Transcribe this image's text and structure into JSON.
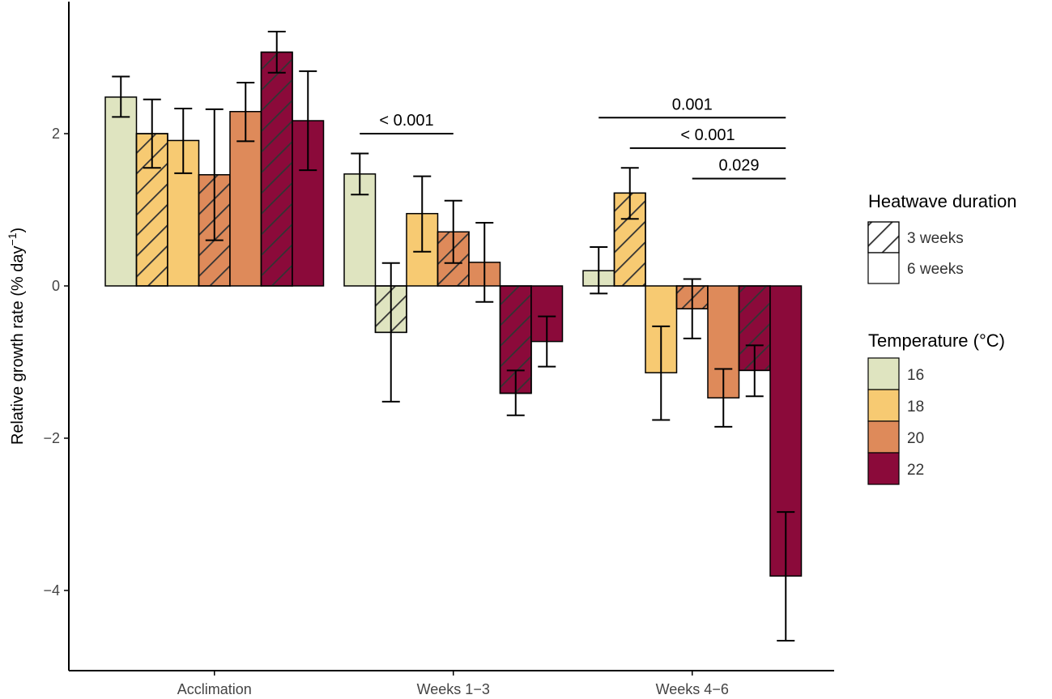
{
  "chart_data": {
    "type": "bar",
    "title": "",
    "xlabel": "",
    "ylabel": "Relative growth rate (% day",
    "ylabel_superscript": "−1",
    "ylabel_close": ")",
    "ylim": [
      -5,
      3.6
    ],
    "yticks": [
      -4,
      -2,
      0,
      2
    ],
    "ytick_labels": [
      "−4",
      "−2",
      "0",
      "2"
    ],
    "categories": [
      "Acclimation",
      "Weeks 1−3",
      "Weeks 4−6"
    ],
    "colors": {
      "16": "#dfe4c0",
      "18": "#f7ca72",
      "20": "#de8a5a",
      "22": "#8b0a3a"
    },
    "bars": [
      [
        {
          "temp": "16",
          "hatched": false,
          "value": 2.48,
          "err_low": 2.22,
          "err_high": 2.75
        },
        {
          "temp": "18",
          "hatched": true,
          "value": 2.0,
          "err_low": 1.55,
          "err_high": 2.45
        },
        {
          "temp": "18",
          "hatched": false,
          "value": 1.91,
          "err_low": 1.48,
          "err_high": 2.33
        },
        {
          "temp": "20",
          "hatched": true,
          "value": 1.46,
          "err_low": 0.6,
          "err_high": 2.32
        },
        {
          "temp": "20",
          "hatched": false,
          "value": 2.29,
          "err_low": 1.9,
          "err_high": 2.67
        },
        {
          "temp": "22",
          "hatched": true,
          "value": 3.07,
          "err_low": 2.8,
          "err_high": 3.34
        },
        {
          "temp": "22",
          "hatched": false,
          "value": 2.17,
          "err_low": 1.52,
          "err_high": 2.82
        }
      ],
      [
        {
          "temp": "16",
          "hatched": false,
          "value": 1.47,
          "err_low": 1.2,
          "err_high": 1.74
        },
        {
          "temp": "16",
          "hatched": true,
          "value": -0.61,
          "err_low": -1.52,
          "err_high": 0.3
        },
        {
          "temp": "18",
          "hatched": false,
          "value": 0.95,
          "err_low": 0.45,
          "err_high": 1.44
        },
        {
          "temp": "20",
          "hatched": true,
          "value": 0.71,
          "err_low": 0.3,
          "err_high": 1.12
        },
        {
          "temp": "20",
          "hatched": false,
          "value": 0.31,
          "err_low": -0.21,
          "err_high": 0.83
        },
        {
          "temp": "22",
          "hatched": true,
          "value": -1.41,
          "err_low": -1.7,
          "err_high": -1.11
        },
        {
          "temp": "22",
          "hatched": false,
          "value": -0.73,
          "err_low": -1.06,
          "err_high": -0.4
        }
      ],
      [
        {
          "temp": "16",
          "hatched": false,
          "value": 0.2,
          "err_low": -0.1,
          "err_high": 0.51
        },
        {
          "temp": "18",
          "hatched": true,
          "value": 1.22,
          "err_low": 0.88,
          "err_high": 1.55
        },
        {
          "temp": "18",
          "hatched": false,
          "value": -1.14,
          "err_low": -1.76,
          "err_high": -0.53
        },
        {
          "temp": "20",
          "hatched": true,
          "value": -0.3,
          "err_low": -0.69,
          "err_high": 0.09
        },
        {
          "temp": "20",
          "hatched": false,
          "value": -1.47,
          "err_low": -1.85,
          "err_high": -1.09
        },
        {
          "temp": "22",
          "hatched": true,
          "value": -1.11,
          "err_low": -1.45,
          "err_high": -0.78
        },
        {
          "temp": "22",
          "hatched": false,
          "value": -3.81,
          "err_low": -4.66,
          "err_high": -2.97
        }
      ]
    ],
    "annotations": [
      {
        "text": "<  0.001",
        "group": 1,
        "from_bar": 0,
        "to_bar": 3,
        "y_value": 2.0
      },
      {
        "text": "0.001",
        "group": 2,
        "from_bar": 0,
        "to_bar": 6,
        "y_value": 2.21
      },
      {
        "text": "< 0.001",
        "group": 2,
        "from_bar": 1,
        "to_bar": 6,
        "y_value": 1.81
      },
      {
        "text": "0.029",
        "group": 2,
        "from_bar": 3,
        "to_bar": 6,
        "y_value": 1.41
      }
    ],
    "legend": {
      "placement": "right",
      "duration_title": "Heatwave duration",
      "duration_items": [
        {
          "label": "3 weeks",
          "hatched": true
        },
        {
          "label": "6 weeks",
          "hatched": false
        }
      ],
      "temperature_title": "Temperature (°C)",
      "temperature_items": [
        {
          "label": "16",
          "temp": "16"
        },
        {
          "label": "18",
          "temp": "18"
        },
        {
          "label": "20",
          "temp": "20"
        },
        {
          "label": "22",
          "temp": "22"
        }
      ]
    }
  }
}
